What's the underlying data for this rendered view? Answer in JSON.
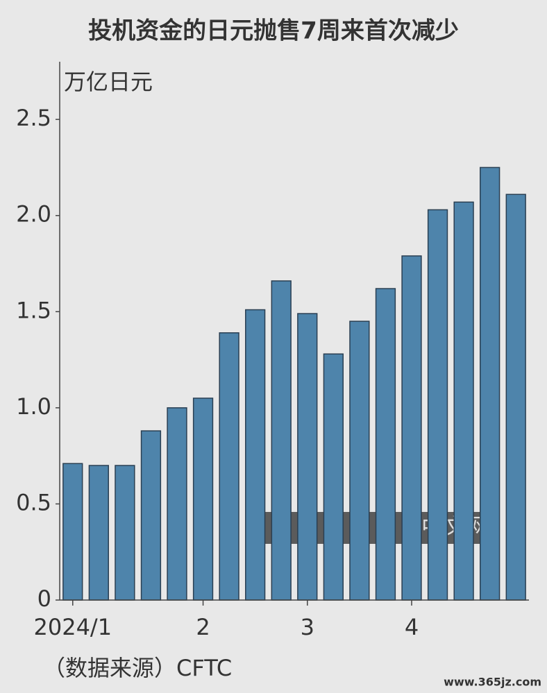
{
  "chart_data": {
    "type": "bar",
    "title": "投机资金的日元抛售7周来首次减少",
    "y_axis_label": "万亿日元",
    "source": "（数据来源）CFTC",
    "watermark": "中文网",
    "footer_url": "www.365jz.com",
    "categories": [
      "2024/1",
      null,
      null,
      null,
      null,
      "2",
      null,
      null,
      null,
      "3",
      null,
      null,
      null,
      "4",
      null,
      null,
      null,
      null
    ],
    "values": [
      0.71,
      0.7,
      0.7,
      0.88,
      1.0,
      1.05,
      1.39,
      1.51,
      1.66,
      1.49,
      1.28,
      1.45,
      1.62,
      1.79,
      2.03,
      2.07,
      2.25,
      2.11
    ],
    "color": "#4e84ab",
    "ylim": [
      0,
      2.8
    ],
    "yticks": [
      0,
      0.5,
      {
        "value": 1,
        "label": "1.0"
      },
      1.5,
      {
        "value": 2,
        "label": "2.0"
      },
      2.5
    ],
    "grid": false
  }
}
